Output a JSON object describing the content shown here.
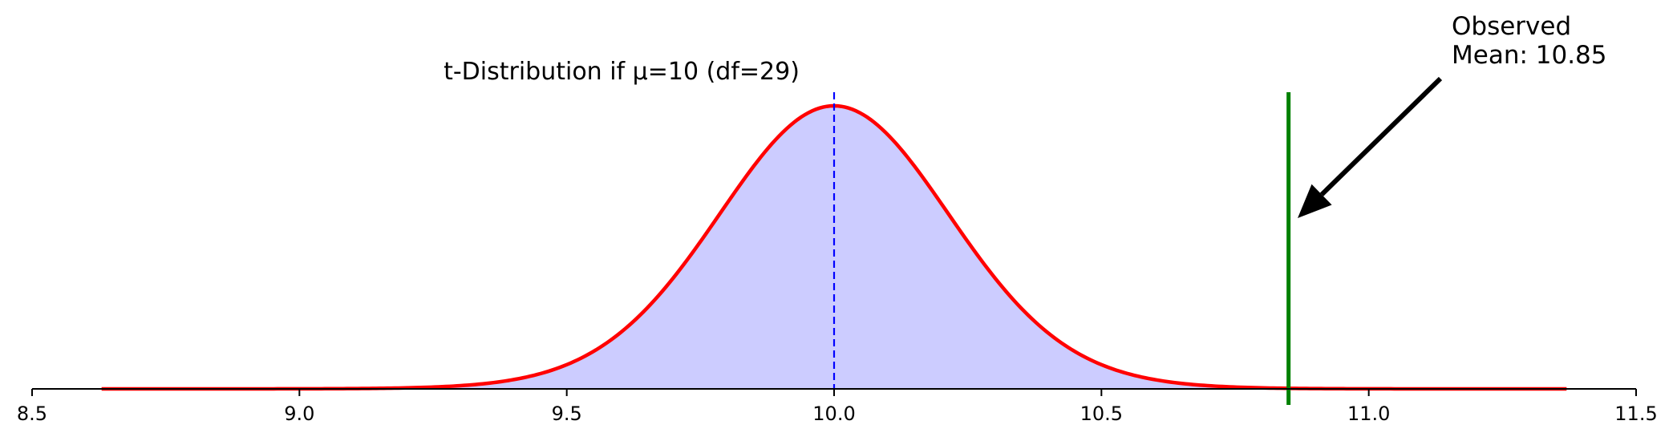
{
  "chart_data": {
    "type": "area",
    "title": "t-Distribution if μ=10 (df=29)",
    "distribution": "t",
    "df": 29,
    "mu": 10,
    "scale": 0.22,
    "curve_x_range": [
      8.63,
      11.37
    ],
    "shaded_region": [
      9.07,
      10.93
    ],
    "observed_mean": 10.85,
    "xlim": [
      8.5,
      11.5
    ],
    "x_ticks": [
      "8.5",
      "9.0",
      "9.5",
      "10.0",
      "10.5",
      "11.0",
      "11.5"
    ],
    "annotation": {
      "lines": [
        "Observed",
        "Mean: 10.85"
      ]
    },
    "colors": {
      "curve": "#ff0000",
      "fill": "#ccccff",
      "fill_edge": "#9999ee",
      "mean_line": "#0000ff",
      "observed_line": "#008000",
      "arrow": "#000000"
    },
    "grid": false,
    "legend": "none"
  }
}
